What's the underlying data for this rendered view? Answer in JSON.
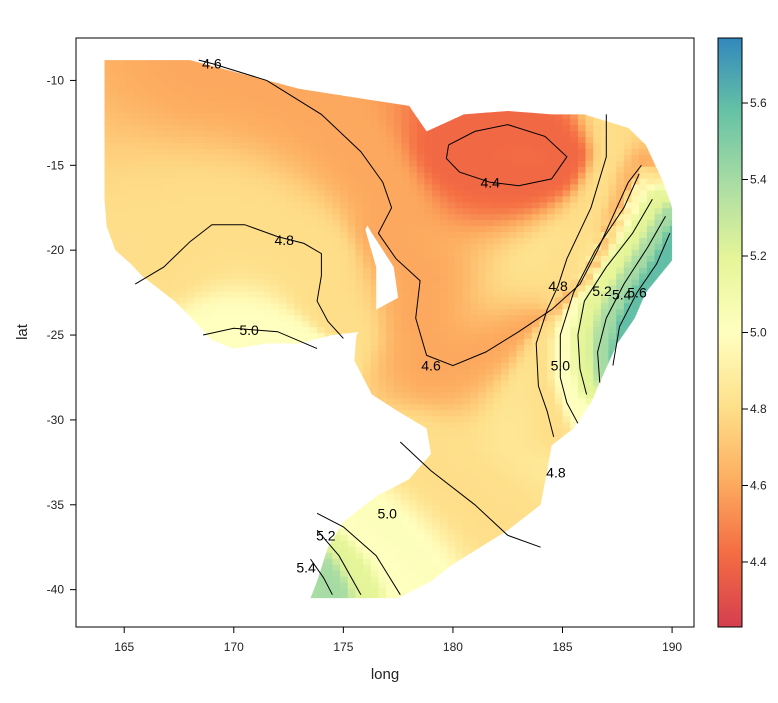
{
  "chart_data": {
    "type": "heatmap",
    "title": "",
    "xlabel": "long",
    "ylabel": "lat",
    "xlim": [
      162.8,
      191.0
    ],
    "ylim": [
      -42.2,
      -7.5
    ],
    "x_ticks": [
      165,
      170,
      175,
      180,
      185,
      190
    ],
    "y_ticks": [
      -10,
      -15,
      -20,
      -25,
      -30,
      -35,
      -40
    ],
    "x_tick_labels": [
      "165",
      "170",
      "175",
      "180",
      "185",
      "190"
    ],
    "y_tick_labels": [
      "-10",
      "-15",
      "-20",
      "-25",
      "-30",
      "-35",
      "-40"
    ],
    "colorbar": {
      "min": 4.23,
      "max": 5.77,
      "ticks": [
        4.4,
        4.6,
        4.8,
        5.0,
        5.2,
        5.4,
        5.6
      ],
      "tick_labels": [
        "4.4",
        "4.6",
        "4.8",
        "5.0",
        "5.2",
        "5.4",
        "5.6"
      ],
      "palette": [
        "#d53e4f",
        "#f46d43",
        "#fdae61",
        "#fee08b",
        "#ffffbf",
        "#e6f598",
        "#abdda4",
        "#66c2a5",
        "#3288bd"
      ]
    },
    "region": [
      [
        164.1,
        -8.8
      ],
      [
        168.0,
        -8.8
      ],
      [
        173.0,
        -10.5
      ],
      [
        178.0,
        -11.5
      ],
      [
        178.8,
        -13.0
      ],
      [
        180.5,
        -12.0
      ],
      [
        182.5,
        -11.8
      ],
      [
        184.5,
        -12.0
      ],
      [
        186.0,
        -12.0
      ],
      [
        188.0,
        -12.8
      ],
      [
        188.8,
        -13.8
      ],
      [
        189.6,
        -16.0
      ],
      [
        190.0,
        -17.5
      ],
      [
        190.0,
        -20.6
      ],
      [
        188.8,
        -22.5
      ],
      [
        188.3,
        -24.0
      ],
      [
        187.5,
        -25.5
      ],
      [
        186.8,
        -27.5
      ],
      [
        186.3,
        -29.0
      ],
      [
        185.5,
        -30.5
      ],
      [
        184.5,
        -31.5
      ],
      [
        184.3,
        -33.0
      ],
      [
        184.0,
        -35.0
      ],
      [
        182.5,
        -36.5
      ],
      [
        180.0,
        -38.5
      ],
      [
        179.0,
        -39.5
      ],
      [
        177.5,
        -40.5
      ],
      [
        173.5,
        -40.5
      ],
      [
        173.8,
        -39.5
      ],
      [
        174.3,
        -37.5
      ],
      [
        175.0,
        -36.0
      ],
      [
        176.5,
        -34.5
      ],
      [
        178.0,
        -33.5
      ],
      [
        179.0,
        -32.0
      ],
      [
        178.8,
        -30.5
      ],
      [
        177.5,
        -29.5
      ],
      [
        176.3,
        -28.5
      ],
      [
        175.5,
        -26.5
      ],
      [
        175.6,
        -25.0
      ],
      [
        176.5,
        -23.5
      ],
      [
        177.5,
        -22.8
      ],
      [
        177.3,
        -21.0
      ],
      [
        176.3,
        -19.0
      ],
      [
        175.4,
        -17.0
      ],
      [
        174.8,
        -15.0
      ],
      [
        175.3,
        -14.0
      ],
      [
        176.5,
        -13.5
      ],
      [
        178.0,
        -13.5
      ],
      [
        179.0,
        -13.3
      ],
      [
        179.0,
        -14.5
      ],
      [
        178.0,
        -16.0
      ],
      [
        176.5,
        -17.5
      ],
      [
        176.0,
        -18.8
      ],
      [
        176.5,
        -21.0
      ],
      [
        176.5,
        -23.5
      ],
      [
        175.8,
        -24.8
      ],
      [
        174.5,
        -25.0
      ],
      [
        173.0,
        -25.5
      ],
      [
        171.5,
        -25.5
      ],
      [
        170.0,
        -25.8
      ],
      [
        169.0,
        -25.3
      ],
      [
        168.3,
        -24.3
      ],
      [
        167.3,
        -23.0
      ],
      [
        166.6,
        -22.3
      ],
      [
        165.8,
        -21.5
      ],
      [
        165.3,
        -20.8
      ],
      [
        164.6,
        -20.0
      ],
      [
        164.2,
        -18.6
      ],
      [
        164.1,
        -17.0
      ]
    ],
    "contours": [
      {
        "level": 4.4,
        "label": "4.4",
        "label_at": [
          181.7,
          -16.0
        ],
        "points": [
          [
            179.8,
            -13.8
          ],
          [
            181.0,
            -13.0
          ],
          [
            182.5,
            -12.6
          ],
          [
            184.2,
            -13.3
          ],
          [
            185.2,
            -14.5
          ],
          [
            184.5,
            -15.8
          ],
          [
            183.0,
            -16.2
          ],
          [
            181.7,
            -16.0
          ],
          [
            180.3,
            -15.4
          ],
          [
            179.7,
            -14.6
          ],
          [
            179.8,
            -13.8
          ]
        ]
      },
      {
        "level": 4.6,
        "label": "4.6",
        "label_at": [
          169.0,
          -9.0
        ],
        "points": [
          [
            168.4,
            -8.8
          ],
          [
            169.0,
            -9.0
          ],
          [
            171.5,
            -10.0
          ],
          [
            174.0,
            -12.0
          ],
          [
            175.8,
            -14.2
          ],
          [
            176.8,
            -16.0
          ],
          [
            177.2,
            -17.5
          ],
          [
            176.6,
            -19.0
          ],
          [
            177.4,
            -20.5
          ],
          [
            178.5,
            -21.8
          ],
          [
            178.3,
            -24.0
          ],
          [
            178.8,
            -26.2
          ],
          [
            180.0,
            -26.8
          ],
          [
            181.5,
            -26.0
          ],
          [
            183.0,
            -24.8
          ],
          [
            184.5,
            -23.5
          ],
          [
            185.8,
            -22.0
          ],
          [
            186.6,
            -20.0
          ],
          [
            187.3,
            -18.0
          ],
          [
            188.0,
            -16.0
          ],
          [
            188.6,
            -15.0
          ]
        ]
      },
      {
        "level": 4.6,
        "label": "4.6",
        "label_at": [
          179.0,
          -26.8
        ],
        "points": [
          [
            179.0,
            -26.8
          ],
          [
            179.1,
            -26.8
          ]
        ]
      },
      {
        "level": 4.8,
        "label": "4.8",
        "label_at": [
          172.3,
          -19.4
        ],
        "points": [
          [
            165.5,
            -22.0
          ],
          [
            166.8,
            -21.0
          ],
          [
            168.0,
            -19.5
          ],
          [
            169.0,
            -18.5
          ],
          [
            170.5,
            -18.5
          ],
          [
            172.0,
            -19.2
          ],
          [
            173.2,
            -19.6
          ],
          [
            174.0,
            -20.2
          ],
          [
            174.0,
            -21.5
          ],
          [
            173.8,
            -23.0
          ],
          [
            174.3,
            -24.2
          ],
          [
            175.0,
            -25.2
          ]
        ]
      },
      {
        "level": 4.8,
        "label": "4.8",
        "label_at": [
          184.8,
          -22.1
        ],
        "points": [
          [
            187.0,
            -12.0
          ],
          [
            187.0,
            -14.5
          ],
          [
            186.3,
            -17.5
          ],
          [
            185.2,
            -20.5
          ],
          [
            184.8,
            -22.1
          ],
          [
            184.3,
            -23.5
          ],
          [
            183.8,
            -25.5
          ],
          [
            183.9,
            -28.0
          ],
          [
            184.3,
            -29.5
          ],
          [
            184.6,
            -31.0
          ]
        ]
      },
      {
        "level": 4.8,
        "label": "4.8",
        "label_at": [
          184.7,
          -33.1
        ],
        "points": [
          [
            177.6,
            -31.3
          ],
          [
            179.0,
            -33.0
          ],
          [
            181.0,
            -35.0
          ],
          [
            182.5,
            -36.8
          ],
          [
            184.0,
            -37.5
          ]
        ]
      },
      {
        "level": 5.0,
        "label": "5.0",
        "label_at": [
          170.7,
          -24.7
        ],
        "points": [
          [
            168.6,
            -25.0
          ],
          [
            170.0,
            -24.6
          ],
          [
            172.0,
            -24.8
          ],
          [
            173.8,
            -25.8
          ]
        ]
      },
      {
        "level": 5.0,
        "label": "5.0",
        "label_at": [
          184.9,
          -26.8
        ],
        "points": [
          [
            188.5,
            -15.5
          ],
          [
            187.8,
            -17.5
          ],
          [
            186.5,
            -20.0
          ],
          [
            185.5,
            -22.5
          ],
          [
            184.9,
            -25.0
          ],
          [
            184.9,
            -27.5
          ],
          [
            185.2,
            -29.0
          ],
          [
            185.7,
            -30.2
          ]
        ]
      },
      {
        "level": 5.0,
        "label": "5.0",
        "label_at": [
          177.0,
          -35.5
        ],
        "points": [
          [
            173.8,
            -35.5
          ],
          [
            175.0,
            -36.3
          ],
          [
            176.5,
            -38.0
          ],
          [
            177.6,
            -40.3
          ]
        ]
      },
      {
        "level": 5.2,
        "label": "5.2",
        "label_at": [
          186.8,
          -22.4
        ],
        "points": [
          [
            189.1,
            -17.0
          ],
          [
            188.2,
            -19.0
          ],
          [
            187.0,
            -21.0
          ],
          [
            186.0,
            -23.0
          ],
          [
            185.7,
            -25.0
          ],
          [
            185.8,
            -27.0
          ],
          [
            186.1,
            -28.5
          ]
        ]
      },
      {
        "level": 5.2,
        "label": "5.2",
        "label_at": [
          174.2,
          -36.8
        ],
        "points": [
          [
            173.8,
            -36.5
          ],
          [
            174.8,
            -38.0
          ],
          [
            175.8,
            -40.3
          ]
        ]
      },
      {
        "level": 5.4,
        "label": "5.4",
        "label_at": [
          187.7,
          -22.6
        ],
        "points": [
          [
            189.7,
            -18.0
          ],
          [
            188.9,
            -19.8
          ],
          [
            187.8,
            -22.0
          ],
          [
            187.0,
            -24.0
          ],
          [
            186.6,
            -26.0
          ],
          [
            186.7,
            -27.8
          ]
        ]
      },
      {
        "level": 5.4,
        "label": "5.4",
        "label_at": [
          173.3,
          -38.7
        ],
        "points": [
          [
            173.5,
            -38.2
          ],
          [
            174.1,
            -39.3
          ],
          [
            174.5,
            -40.3
          ]
        ]
      },
      {
        "level": 5.6,
        "label": "5.6",
        "label_at": [
          188.4,
          -22.5
        ],
        "points": [
          [
            189.9,
            -19.0
          ],
          [
            189.3,
            -20.8
          ],
          [
            188.4,
            -22.5
          ],
          [
            187.6,
            -24.5
          ],
          [
            187.3,
            -26.8
          ]
        ]
      }
    ],
    "grid": false
  }
}
